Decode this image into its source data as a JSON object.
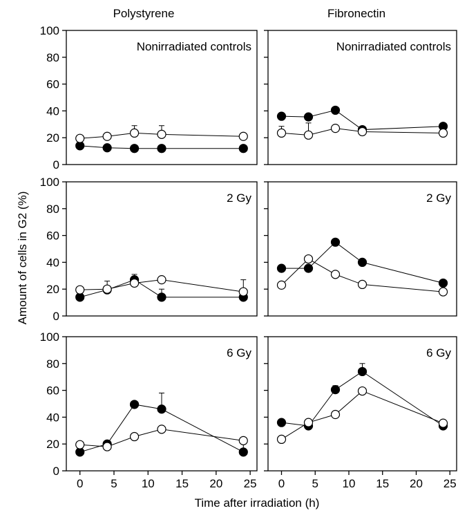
{
  "chart_data": {
    "type": "scatter",
    "columns": [
      "Polystyrene",
      "Fibronectin"
    ],
    "ylabel": "Amount of cells in G2 (%)",
    "xlabel": "Time after irradiation (h)",
    "xlim": [
      -2,
      26
    ],
    "ylim": [
      0,
      100
    ],
    "xticks": [
      0,
      5,
      10,
      15,
      20,
      25
    ],
    "yticks": [
      0,
      20,
      40,
      60,
      80,
      100
    ],
    "marker_colors": {
      "filled": "#000000",
      "open": "#ffffff"
    },
    "panels": [
      {
        "column": "Polystyrene",
        "label": "Nonirradiated controls",
        "series": [
          {
            "marker": "filled",
            "points": [
              {
                "x": 0,
                "y": 14,
                "err": 2
              },
              {
                "x": 4,
                "y": 12.5
              },
              {
                "x": 8,
                "y": 12
              },
              {
                "x": 12,
                "y": 12
              },
              {
                "x": 24,
                "y": 12
              }
            ]
          },
          {
            "marker": "open",
            "points": [
              {
                "x": 0,
                "y": 19.5
              },
              {
                "x": 4,
                "y": 21
              },
              {
                "x": 8,
                "y": 23.5,
                "err": 5.5
              },
              {
                "x": 12,
                "y": 22.5,
                "err": 6.5
              },
              {
                "x": 24,
                "y": 21
              }
            ]
          }
        ]
      },
      {
        "column": "Fibronectin",
        "label": "Nonirradiated controls",
        "series": [
          {
            "marker": "filled",
            "points": [
              {
                "x": 0,
                "y": 36
              },
              {
                "x": 4,
                "y": 35.5
              },
              {
                "x": 8,
                "y": 40.5
              },
              {
                "x": 12,
                "y": 26
              },
              {
                "x": 24,
                "y": 28.5
              }
            ]
          },
          {
            "marker": "open",
            "points": [
              {
                "x": 0,
                "y": 23.5,
                "err": 5
              },
              {
                "x": 4,
                "y": 22,
                "err": 9
              },
              {
                "x": 8,
                "y": 27
              },
              {
                "x": 12,
                "y": 24.5
              },
              {
                "x": 24,
                "y": 23.5
              }
            ]
          }
        ]
      },
      {
        "column": "Polystyrene",
        "label": "2 Gy",
        "series": [
          {
            "marker": "filled",
            "points": [
              {
                "x": 0,
                "y": 14
              },
              {
                "x": 4,
                "y": 19.5,
                "err": 6.5
              },
              {
                "x": 8,
                "y": 27,
                "err": 4
              },
              {
                "x": 12,
                "y": 14,
                "err": 6
              },
              {
                "x": 24,
                "y": 14,
                "err": 5
              }
            ]
          },
          {
            "marker": "open",
            "points": [
              {
                "x": 0,
                "y": 19.5
              },
              {
                "x": 4,
                "y": 20
              },
              {
                "x": 8,
                "y": 24.5,
                "err": 5
              },
              {
                "x": 12,
                "y": 27
              },
              {
                "x": 24,
                "y": 18,
                "err": 9
              }
            ]
          }
        ]
      },
      {
        "column": "Fibronectin",
        "label": "2 Gy",
        "series": [
          {
            "marker": "filled",
            "points": [
              {
                "x": 0,
                "y": 35.5
              },
              {
                "x": 4,
                "y": 35.5
              },
              {
                "x": 8,
                "y": 55
              },
              {
                "x": 12,
                "y": 40
              },
              {
                "x": 24,
                "y": 24.5
              }
            ]
          },
          {
            "marker": "open",
            "points": [
              {
                "x": 0,
                "y": 23
              },
              {
                "x": 4,
                "y": 42.5
              },
              {
                "x": 8,
                "y": 31
              },
              {
                "x": 12,
                "y": 23.5
              },
              {
                "x": 24,
                "y": 18,
                "err": 4
              }
            ]
          }
        ]
      },
      {
        "column": "Polystyrene",
        "label": "6 Gy",
        "series": [
          {
            "marker": "filled",
            "points": [
              {
                "x": 0,
                "y": 14
              },
              {
                "x": 4,
                "y": 20
              },
              {
                "x": 8,
                "y": 49.5
              },
              {
                "x": 12,
                "y": 46,
                "err": 12
              },
              {
                "x": 24,
                "y": 14,
                "err": 6
              }
            ]
          },
          {
            "marker": "open",
            "points": [
              {
                "x": 0,
                "y": 19.5
              },
              {
                "x": 4,
                "y": 18
              },
              {
                "x": 8,
                "y": 25.5
              },
              {
                "x": 12,
                "y": 31
              },
              {
                "x": 24,
                "y": 22.5
              }
            ]
          }
        ]
      },
      {
        "column": "Fibronectin",
        "label": "6 Gy",
        "series": [
          {
            "marker": "filled",
            "points": [
              {
                "x": 0,
                "y": 36
              },
              {
                "x": 4,
                "y": 33.5
              },
              {
                "x": 8,
                "y": 60.5,
                "err": 3
              },
              {
                "x": 12,
                "y": 74,
                "err": 6
              },
              {
                "x": 24,
                "y": 33.5
              }
            ]
          },
          {
            "marker": "open",
            "points": [
              {
                "x": 0,
                "y": 23.5
              },
              {
                "x": 4,
                "y": 36
              },
              {
                "x": 8,
                "y": 42
              },
              {
                "x": 12,
                "y": 59.5
              },
              {
                "x": 24,
                "y": 35.5
              }
            ]
          }
        ]
      }
    ]
  }
}
